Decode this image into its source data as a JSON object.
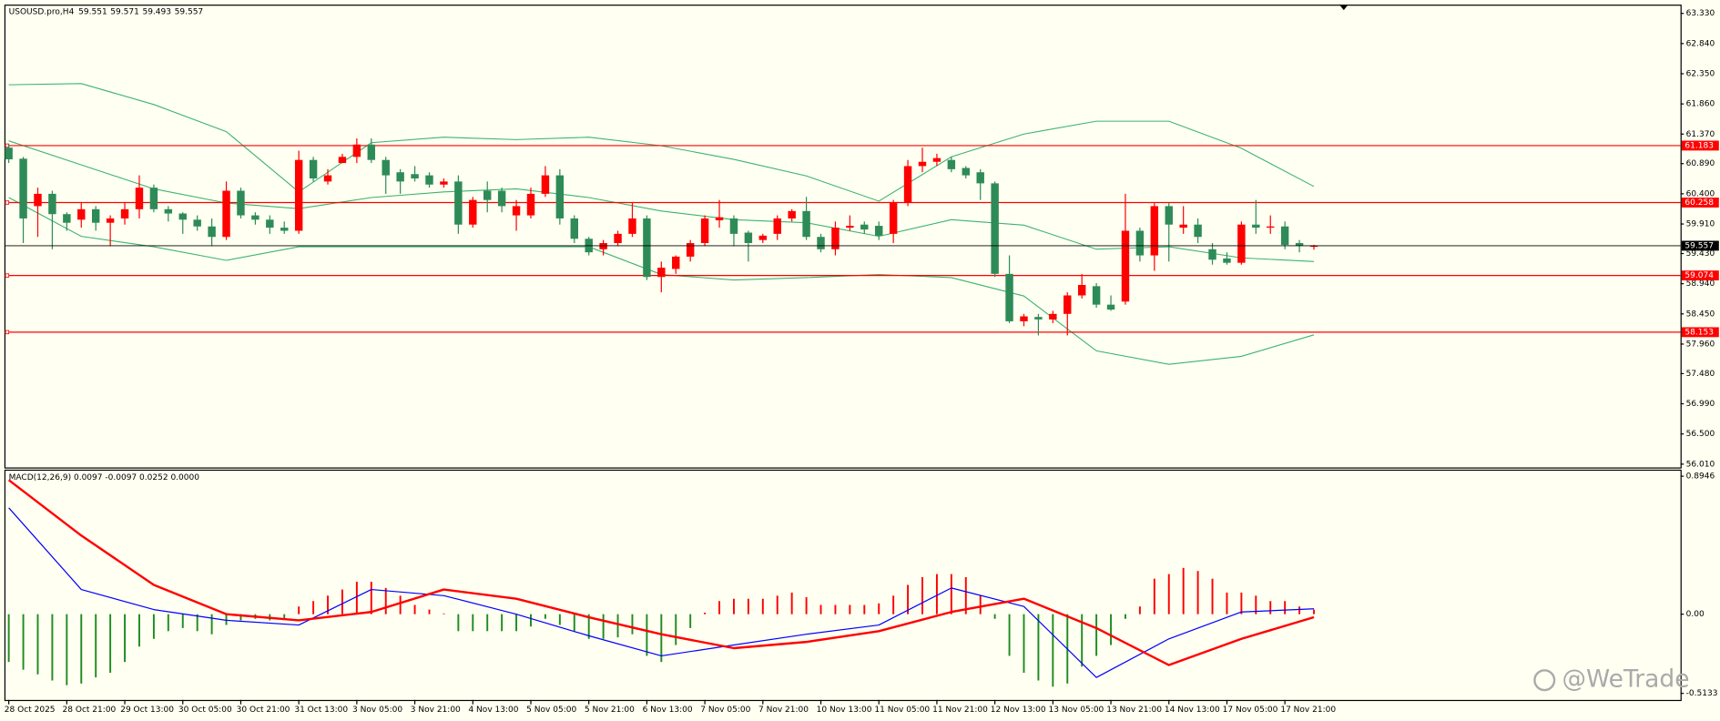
{
  "chart_data": [
    {
      "type": "candlestick",
      "title": "USOUSD.pro,H4",
      "categories": [
        "28 Oct 2025",
        null,
        null,
        null,
        "28 Oct 21:00",
        null,
        null,
        null,
        "29 Oct 13:00",
        null,
        null,
        null,
        "30 Oct 05:00",
        null,
        null,
        null,
        "30 Oct 21:00",
        null,
        null,
        null,
        "31 Oct 13:00",
        null,
        null,
        null,
        "3 Nov 05:00",
        null,
        null,
        null,
        "3 Nov 21:00",
        null,
        null,
        null,
        "4 Nov 13:00",
        null,
        null,
        null,
        "5 Nov 05:00",
        null,
        null,
        null,
        "5 Nov 21:00",
        null,
        null,
        null,
        "6 Nov 13:00",
        null,
        null,
        null,
        "7 Nov 05:00",
        null,
        null,
        null,
        "7 Nov 21:00",
        null,
        null,
        null,
        "10 Nov 13:00",
        null,
        null,
        null,
        "11 Nov 05:00",
        null,
        null,
        null,
        "11 Nov 21:00",
        null,
        null,
        null,
        "12 Nov 13:00",
        null,
        null,
        null,
        "13 Nov 05:00",
        null,
        null,
        null,
        "13 Nov 21:00",
        null,
        null,
        null,
        "14 Nov 13:00",
        null,
        null,
        null,
        "17 Nov 05:00",
        null,
        null,
        null,
        "17 Nov 21:00",
        null,
        null
      ],
      "open": [
        61.15,
        60.97,
        60.2,
        60.4,
        60.07,
        59.98,
        60.15,
        59.93,
        60.0,
        60.15,
        60.5,
        60.15,
        60.08,
        59.98,
        59.87,
        59.7,
        60.45,
        60.05,
        59.98,
        59.85,
        59.8,
        60.95,
        60.6,
        60.9,
        61.0,
        61.2,
        60.95,
        60.75,
        60.72,
        60.7,
        60.55,
        60.6,
        59.9,
        60.45,
        60.45,
        60.05,
        60.05,
        60.4,
        60.7,
        60.0,
        59.67,
        59.5,
        59.6,
        59.75,
        60.0,
        59.05,
        59.18,
        59.38,
        59.6,
        59.97,
        60.0,
        59.77,
        59.65,
        59.75,
        60.0,
        60.12,
        59.7,
        59.5,
        59.85,
        59.9,
        59.88,
        59.75,
        60.25,
        60.85,
        60.92,
        60.95,
        60.82,
        60.75,
        60.57,
        59.1,
        58.33,
        58.4,
        58.36,
        58.45,
        58.75,
        58.9,
        58.6,
        58.65,
        59.8,
        59.4,
        60.2,
        59.85,
        59.9,
        59.5,
        59.35,
        59.28,
        59.9,
        59.85,
        59.87,
        59.6,
        59.551
      ],
      "high": [
        61.2,
        61.0,
        60.5,
        60.45,
        60.1,
        60.25,
        60.2,
        60.05,
        60.25,
        60.7,
        60.55,
        60.2,
        60.1,
        60.05,
        60.0,
        60.6,
        60.5,
        60.1,
        60.05,
        59.95,
        61.1,
        61.0,
        60.8,
        61.05,
        61.3,
        61.3,
        61.0,
        60.8,
        60.85,
        60.75,
        60.65,
        60.7,
        60.35,
        60.6,
        60.5,
        60.3,
        60.5,
        60.85,
        60.8,
        60.05,
        59.7,
        59.65,
        59.8,
        60.25,
        60.05,
        59.3,
        59.4,
        59.65,
        60.05,
        60.3,
        60.05,
        59.8,
        59.75,
        60.05,
        60.15,
        60.35,
        59.75,
        59.95,
        60.05,
        59.95,
        59.95,
        60.3,
        60.95,
        61.15,
        61.05,
        61.0,
        60.85,
        60.8,
        60.6,
        59.4,
        58.45,
        58.45,
        58.5,
        58.8,
        59.1,
        58.95,
        58.75,
        60.4,
        59.85,
        60.25,
        60.25,
        60.2,
        60.0,
        59.6,
        59.45,
        59.95,
        60.3,
        60.05,
        59.95,
        59.65,
        59.571
      ],
      "low": [
        60.9,
        59.6,
        59.7,
        59.5,
        59.8,
        59.85,
        59.8,
        59.55,
        59.9,
        60.0,
        60.1,
        59.95,
        59.75,
        59.8,
        59.55,
        59.65,
        60.0,
        59.9,
        59.75,
        59.75,
        59.75,
        60.6,
        60.55,
        60.9,
        60.9,
        60.9,
        60.4,
        60.4,
        60.6,
        60.5,
        60.5,
        59.75,
        59.85,
        60.1,
        60.1,
        59.8,
        60.0,
        60.35,
        59.9,
        59.6,
        59.4,
        59.4,
        59.55,
        59.7,
        59.0,
        58.8,
        59.1,
        59.3,
        59.55,
        59.85,
        59.55,
        59.3,
        59.6,
        59.65,
        59.95,
        59.65,
        59.45,
        59.4,
        59.8,
        59.75,
        59.65,
        59.6,
        60.2,
        60.75,
        60.85,
        60.75,
        60.65,
        60.3,
        59.05,
        58.3,
        58.25,
        58.1,
        58.3,
        58.1,
        58.7,
        58.55,
        58.5,
        58.6,
        59.3,
        59.15,
        59.3,
        59.75,
        59.6,
        59.25,
        59.25,
        59.25,
        59.75,
        59.75,
        59.5,
        59.45,
        59.493
      ],
      "close": [
        60.96,
        60.0,
        60.4,
        60.07,
        59.93,
        60.15,
        59.93,
        60.0,
        60.15,
        60.5,
        60.15,
        60.08,
        59.98,
        59.87,
        59.7,
        60.45,
        60.05,
        59.98,
        59.85,
        59.8,
        60.95,
        60.65,
        60.7,
        61.0,
        61.2,
        60.95,
        60.7,
        60.6,
        60.65,
        60.55,
        60.6,
        59.9,
        60.3,
        60.3,
        60.2,
        60.2,
        60.4,
        60.7,
        60.0,
        59.67,
        59.45,
        59.6,
        59.75,
        60.0,
        59.05,
        59.2,
        59.38,
        59.6,
        60.0,
        60.02,
        59.75,
        59.6,
        59.72,
        60.0,
        60.12,
        59.7,
        59.5,
        59.85,
        59.88,
        59.82,
        59.72,
        60.25,
        60.85,
        60.92,
        60.98,
        60.8,
        60.7,
        60.57,
        59.1,
        58.33,
        58.41,
        58.36,
        58.45,
        58.75,
        58.92,
        58.6,
        58.52,
        59.8,
        59.4,
        60.2,
        59.9,
        59.9,
        59.7,
        59.33,
        59.28,
        59.9,
        59.85,
        59.87,
        59.57,
        59.56,
        59.557
      ],
      "bull_color": "#ff0000",
      "bear_color": "#2e8b57",
      "ylim": [
        56.01,
        63.33
      ],
      "yticks": [
        {
          "value": 63.33,
          "label": "63.330"
        },
        {
          "value": 62.84,
          "label": "62.840"
        },
        {
          "value": 62.35,
          "label": "62.350"
        },
        {
          "value": 61.86,
          "label": "61.860"
        },
        {
          "value": 61.37,
          "label": "61.370"
        },
        {
          "value": 60.89,
          "label": "60.890"
        },
        {
          "value": 60.4,
          "label": "60.400"
        },
        {
          "value": 59.91,
          "label": "59.910"
        },
        {
          "value": 59.43,
          "label": "59.430"
        },
        {
          "value": 58.94,
          "label": "58.940"
        },
        {
          "value": 58.45,
          "label": "58.450"
        },
        {
          "value": 57.96,
          "label": "57.960"
        },
        {
          "value": 57.48,
          "label": "57.480"
        },
        {
          "value": 56.99,
          "label": "56.990"
        },
        {
          "value": 56.5,
          "label": "56.500"
        },
        {
          "value": 56.01,
          "label": "56.010"
        }
      ],
      "bands": [
        {
          "color": "#3cb371",
          "x": [
            0,
            5,
            10,
            15,
            20,
            25,
            30,
            35,
            40,
            45,
            50,
            55,
            60,
            65,
            70,
            75,
            80,
            85,
            90
          ],
          "values": [
            62.17,
            62.19,
            61.85,
            61.41,
            60.43,
            61.23,
            61.32,
            61.28,
            61.32,
            61.18,
            60.96,
            60.69,
            60.28,
            61.0,
            61.37,
            61.58,
            61.58,
            61.14,
            60.52
          ]
        },
        {
          "color": "#3cb371",
          "x": [
            0,
            5,
            10,
            15,
            20,
            25,
            30,
            35,
            40,
            45,
            50,
            55,
            60,
            65,
            70,
            75,
            80,
            85,
            90
          ],
          "values": [
            61.26,
            60.87,
            60.48,
            60.25,
            60.16,
            60.34,
            60.43,
            60.48,
            60.34,
            60.12,
            59.98,
            59.93,
            59.71,
            59.98,
            59.89,
            59.5,
            59.54,
            59.36,
            59.3
          ]
        },
        {
          "color": "#3cb371",
          "x": [
            0,
            5,
            10,
            15,
            20,
            25,
            30,
            35,
            40,
            45,
            50,
            55,
            60,
            65,
            70,
            75,
            80,
            85,
            90
          ],
          "values": [
            60.34,
            59.71,
            59.54,
            59.32,
            59.54,
            59.54,
            59.54,
            59.54,
            59.54,
            59.09,
            59.0,
            59.04,
            59.09,
            59.04,
            58.74,
            57.85,
            57.63,
            57.76,
            58.11
          ]
        }
      ],
      "levels": {
        "color": "#ff0000",
        "values": [
          61.183,
          60.258,
          59.074,
          58.153
        ]
      },
      "price_line_color": "#000000",
      "watermark": "@WeTrade"
    },
    {
      "type": "macd",
      "title": "MACD(12,26,9) 0.0097 -0.0097 0.0252 0.0000",
      "histogram": [
        -0.31,
        -0.36,
        -0.39,
        -0.43,
        -0.46,
        -0.45,
        -0.41,
        -0.38,
        -0.31,
        -0.21,
        -0.16,
        -0.11,
        -0.09,
        -0.11,
        -0.13,
        -0.07,
        -0.04,
        -0.03,
        -0.04,
        -0.035,
        0.05,
        0.085,
        0.12,
        0.16,
        0.21,
        0.21,
        0.17,
        0.12,
        0.06,
        0.03,
        0.005,
        -0.11,
        -0.11,
        -0.11,
        -0.11,
        -0.11,
        -0.08,
        -0.03,
        -0.07,
        -0.11,
        -0.16,
        -0.16,
        -0.15,
        -0.13,
        -0.27,
        -0.31,
        -0.2,
        -0.09,
        0.01,
        0.085,
        0.1,
        0.1,
        0.1,
        0.12,
        0.14,
        0.11,
        0.06,
        0.06,
        0.06,
        0.06,
        0.07,
        0.12,
        0.19,
        0.24,
        0.26,
        0.26,
        0.24,
        0.12,
        -0.03,
        -0.27,
        -0.38,
        -0.43,
        -0.47,
        -0.45,
        -0.34,
        -0.27,
        -0.2,
        -0.03,
        0.05,
        0.23,
        0.26,
        0.3,
        0.28,
        0.23,
        0.14,
        0.14,
        0.12,
        0.085,
        0.085,
        0.05,
        0.03
      ],
      "positive_color": "#ff0000",
      "negative_color": "#1f8b1f",
      "series": [
        {
          "color": "#0000ff",
          "width": 1,
          "x": [
            0,
            5,
            10,
            15,
            20,
            25,
            30,
            35,
            40,
            45,
            50,
            55,
            60,
            65,
            70,
            75,
            80,
            85,
            90
          ],
          "values": [
            0.69,
            0.16,
            0.03,
            -0.04,
            -0.07,
            0.16,
            0.12,
            0.0,
            -0.14,
            -0.27,
            -0.2,
            -0.13,
            -0.07,
            0.17,
            0.05,
            -0.41,
            -0.16,
            0.014,
            0.035
          ]
        },
        {
          "color": "#ff0000",
          "width": 2,
          "x": [
            0,
            5,
            10,
            15,
            20,
            25,
            30,
            35,
            40,
            45,
            50,
            55,
            60,
            65,
            70,
            75,
            80,
            85,
            90
          ],
          "values": [
            0.87,
            0.51,
            0.19,
            0.0,
            -0.04,
            0.014,
            0.16,
            0.1,
            -0.02,
            -0.13,
            -0.22,
            -0.18,
            -0.11,
            0.014,
            0.1,
            -0.09,
            -0.33,
            -0.16,
            -0.02
          ]
        }
      ],
      "ylim": [
        -0.5133,
        0.8946
      ],
      "yticks": [
        0.8946,
        {
          "value": 0,
          "label": "0.00"
        },
        -0.5133
      ]
    }
  ]
}
